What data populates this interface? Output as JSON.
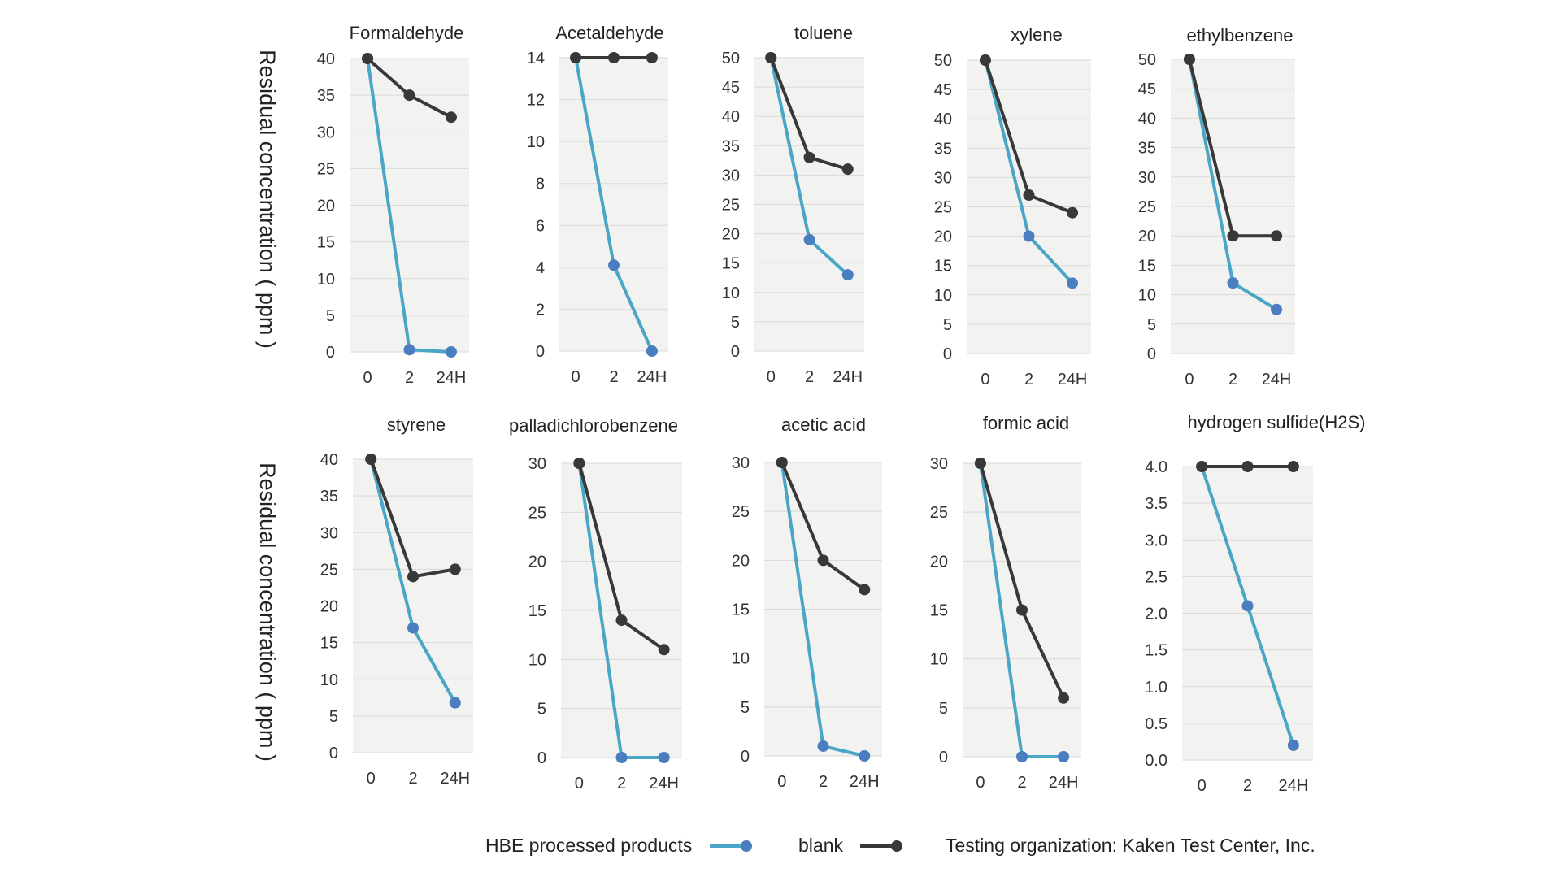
{
  "figure": {
    "ylabel": "Residual concentration ( ppm )",
    "legend": {
      "hbe_label": "HBE processed products",
      "blank_label": "blank",
      "note": "Testing organization: Kaken Test Center, Inc."
    },
    "colors": {
      "hbe": "#4aa6c4",
      "hbe_marker": "#4a7ec0",
      "blank": "#383838",
      "plot_bg": "#f2f2f1",
      "grid": "#d9d9d9"
    }
  },
  "chart_data": [
    {
      "type": "line",
      "title": "Formaldehyde",
      "categories": [
        "0",
        "2",
        "24H"
      ],
      "yticks": [
        "0",
        "5",
        "10",
        "15",
        "20",
        "25",
        "30",
        "35",
        "40"
      ],
      "ylim": [
        0,
        40
      ],
      "grid": true,
      "series": [
        {
          "name": "HBE processed products",
          "values": [
            40,
            0.3,
            0
          ]
        },
        {
          "name": "blank",
          "values": [
            40,
            35,
            32
          ]
        }
      ]
    },
    {
      "type": "line",
      "title": "Acetaldehyde",
      "categories": [
        "0",
        "2",
        "24H"
      ],
      "yticks": [
        "0",
        "2",
        "4",
        "6",
        "8",
        "10",
        "12",
        "14"
      ],
      "ylim": [
        0,
        14
      ],
      "grid": true,
      "series": [
        {
          "name": "HBE processed products",
          "values": [
            14,
            4.1,
            0
          ]
        },
        {
          "name": "blank",
          "values": [
            14,
            14,
            14
          ]
        }
      ]
    },
    {
      "type": "line",
      "title": "toluene",
      "categories": [
        "0",
        "2",
        "24H"
      ],
      "yticks": [
        "0",
        "5",
        "10",
        "15",
        "20",
        "25",
        "30",
        "35",
        "40",
        "45",
        "50"
      ],
      "ylim": [
        0,
        50
      ],
      "grid": true,
      "series": [
        {
          "name": "HBE processed products",
          "values": [
            50,
            19,
            13
          ]
        },
        {
          "name": "blank",
          "values": [
            50,
            33,
            31
          ]
        }
      ]
    },
    {
      "type": "line",
      "title": "xylene",
      "categories": [
        "0",
        "2",
        "24H"
      ],
      "yticks": [
        "0",
        "5",
        "10",
        "15",
        "20",
        "25",
        "30",
        "35",
        "40",
        "45",
        "50"
      ],
      "ylim": [
        0,
        50
      ],
      "grid": true,
      "series": [
        {
          "name": "HBE processed products",
          "values": [
            50,
            20,
            12
          ]
        },
        {
          "name": "blank",
          "values": [
            50,
            27,
            24
          ]
        }
      ]
    },
    {
      "type": "line",
      "title": "ethylbenzene",
      "categories": [
        "0",
        "2",
        "24H"
      ],
      "yticks": [
        "0",
        "5",
        "10",
        "15",
        "20",
        "25",
        "30",
        "35",
        "40",
        "45",
        "50"
      ],
      "ylim": [
        0,
        50
      ],
      "grid": true,
      "series": [
        {
          "name": "HBE processed products",
          "values": [
            50,
            12,
            7.5
          ]
        },
        {
          "name": "blank",
          "values": [
            50,
            20,
            20
          ]
        }
      ]
    },
    {
      "type": "line",
      "title": "styrene",
      "categories": [
        "0",
        "2",
        "24H"
      ],
      "yticks": [
        "0",
        "5",
        "10",
        "15",
        "20",
        "25",
        "30",
        "35",
        "40"
      ],
      "ylim": [
        0,
        40
      ],
      "grid": true,
      "series": [
        {
          "name": "HBE processed products",
          "values": [
            40,
            17,
            6.8
          ]
        },
        {
          "name": "blank",
          "values": [
            40,
            24,
            25
          ]
        }
      ]
    },
    {
      "type": "line",
      "title": "palladichlorobenzene",
      "categories": [
        "0",
        "2",
        "24H"
      ],
      "yticks": [
        "0",
        "5",
        "10",
        "15",
        "20",
        "25",
        "30"
      ],
      "ylim": [
        0,
        30
      ],
      "grid": true,
      "series": [
        {
          "name": "HBE processed products",
          "values": [
            30,
            0,
            0
          ]
        },
        {
          "name": "blank",
          "values": [
            30,
            14,
            11
          ]
        }
      ]
    },
    {
      "type": "line",
      "title": "acetic acid",
      "categories": [
        "0",
        "2",
        "24H"
      ],
      "yticks": [
        "0",
        "5",
        "10",
        "15",
        "20",
        "25",
        "30"
      ],
      "ylim": [
        0,
        30
      ],
      "grid": true,
      "series": [
        {
          "name": "HBE processed products",
          "values": [
            30,
            1,
            0
          ]
        },
        {
          "name": "blank",
          "values": [
            30,
            20,
            17
          ]
        }
      ]
    },
    {
      "type": "line",
      "title": "formic acid",
      "categories": [
        "0",
        "2",
        "24H"
      ],
      "yticks": [
        "0",
        "5",
        "10",
        "15",
        "20",
        "25",
        "30"
      ],
      "ylim": [
        0,
        30
      ],
      "grid": true,
      "series": [
        {
          "name": "HBE processed products",
          "values": [
            30,
            0,
            0
          ]
        },
        {
          "name": "blank",
          "values": [
            30,
            15,
            6
          ]
        }
      ]
    },
    {
      "type": "line",
      "title": "hydrogen sulfide(H2S)",
      "categories": [
        "0",
        "2",
        "24H"
      ],
      "yticks": [
        "0.0",
        "0.5",
        "1.0",
        "1.5",
        "2.0",
        "2.5",
        "3.0",
        "3.5",
        "4.0"
      ],
      "ylim": [
        0,
        4
      ],
      "grid": true,
      "series": [
        {
          "name": "HBE processed products",
          "values": [
            4.0,
            2.1,
            0.2
          ]
        },
        {
          "name": "blank",
          "values": [
            4.0,
            4.0,
            4.0
          ]
        }
      ]
    }
  ]
}
